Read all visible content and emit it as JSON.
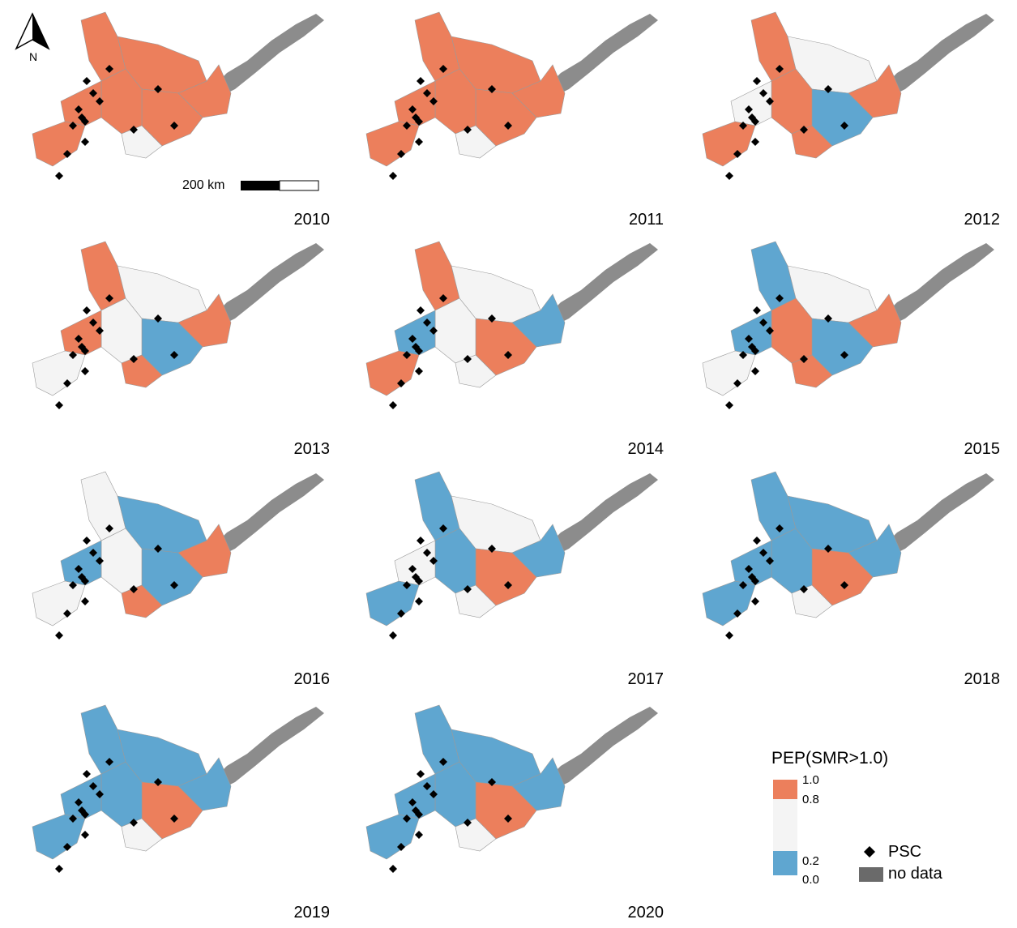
{
  "panels": [
    {
      "year": "2010",
      "scheme": "orange"
    },
    {
      "year": "2011",
      "scheme": "orange"
    },
    {
      "year": "2012",
      "scheme": "orange-mixed"
    },
    {
      "year": "2013",
      "scheme": "orange-gray"
    },
    {
      "year": "2014",
      "scheme": "mixed"
    },
    {
      "year": "2015",
      "scheme": "mixed-blue"
    },
    {
      "year": "2016",
      "scheme": "gray-blue"
    },
    {
      "year": "2017",
      "scheme": "blue-gray"
    },
    {
      "year": "2018",
      "scheme": "blue"
    },
    {
      "year": "2019",
      "scheme": "blue"
    },
    {
      "year": "2020",
      "scheme": "blue"
    }
  ],
  "north_arrow": {
    "label": "N",
    "icon": "north-arrow-icon"
  },
  "scale_bar": {
    "label": "200 km"
  },
  "legend": {
    "title": "PEP(SMR>1.0)",
    "ticks": [
      "1.0",
      "0.8",
      "0.2",
      "0.0"
    ],
    "psc_label": "PSC",
    "nodata_label": "no data"
  },
  "colors": {
    "high": "#ec7f5c",
    "mid": "#f4f4f4",
    "low": "#5fa6d0",
    "nodata": "#8c8c8c",
    "psc": "#000000",
    "border": "#9a9a9a"
  }
}
